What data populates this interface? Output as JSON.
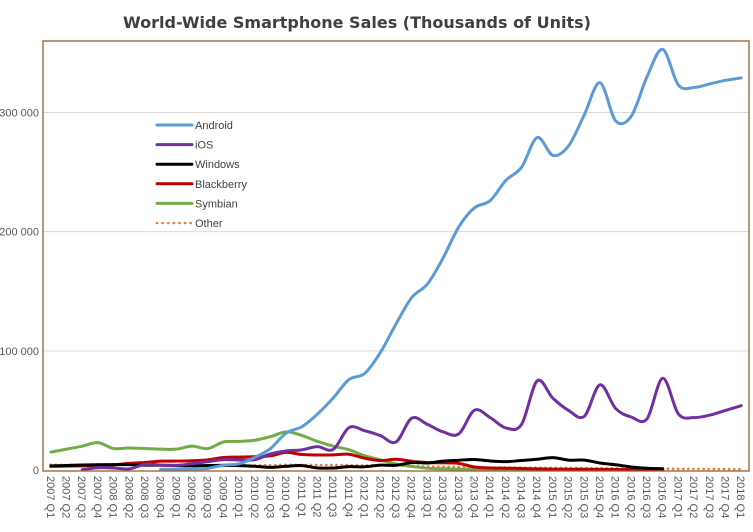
{
  "chart_data": {
    "type": "line",
    "title": "World-Wide Smartphone Sales (Thousands of Units)",
    "xlabel": "",
    "ylabel": "",
    "ylim": [
      0,
      360000
    ],
    "yticks": [
      0,
      100000,
      200000,
      300000
    ],
    "ytick_labels": [
      "0",
      "100 000",
      "200 000",
      "300 000"
    ],
    "grid": "horizontal",
    "legend_position": "upper-left inside",
    "categories": [
      "2007 Q1",
      "2007 Q2",
      "2007 Q3",
      "2007 Q4",
      "2008 Q1",
      "2008 Q2",
      "2008 Q3",
      "2008 Q4",
      "2009 Q1",
      "2009 Q2",
      "2009 Q3",
      "2009 Q4",
      "2010 Q1",
      "2010 Q2",
      "2010 Q3",
      "2010 Q4",
      "2011 Q1",
      "2011 Q2",
      "2011 Q3",
      "2011 Q4",
      "2012 Q1",
      "2012 Q2",
      "2012 Q3",
      "2012 Q4",
      "2013 Q1",
      "2013 Q2",
      "2013 Q3",
      "2013 Q4",
      "2014 Q1",
      "2014 Q2",
      "2014 Q3",
      "2014 Q4",
      "2015 Q1",
      "2015 Q2",
      "2015 Q3",
      "2015 Q4",
      "2016 Q1",
      "2016 Q2",
      "2016 Q3",
      "2016 Q4",
      "2017 Q1",
      "2017 Q2",
      "2017 Q3",
      "2017 Q4",
      "2018 Q1"
    ],
    "series": [
      {
        "name": "Android",
        "color": "#5B9BD5",
        "dash": "solid",
        "values": [
          null,
          null,
          null,
          null,
          null,
          null,
          null,
          600,
          600,
          800,
          1400,
          4000,
          5200,
          10600,
          18000,
          31000,
          36300,
          47000,
          60500,
          75900,
          81000,
          98500,
          122500,
          144700,
          156000,
          177900,
          204000,
          220000,
          226000,
          243000,
          254000,
          279000,
          264000,
          272000,
          298000,
          325000,
          293000,
          297000,
          330000,
          353000,
          323000,
          321000,
          324000,
          327000,
          329000
        ]
      },
      {
        "name": "iOS",
        "color": "#7030A0",
        "dash": "solid",
        "values": [
          null,
          null,
          300,
          1900,
          1700,
          900,
          4700,
          4100,
          3900,
          5300,
          7000,
          8700,
          8400,
          8700,
          13500,
          16000,
          16900,
          19600,
          17300,
          35500,
          33000,
          28900,
          23500,
          43500,
          38300,
          32000,
          30300,
          50200,
          44000,
          35300,
          38200,
          74800,
          60200,
          50000,
          45000,
          71500,
          51600,
          44400,
          43000,
          77000,
          47000,
          44000,
          46000,
          50000,
          54000
        ]
      },
      {
        "name": "Windows",
        "color": "#000000",
        "dash": "solid",
        "values": [
          3500,
          3800,
          4200,
          4400,
          4500,
          4500,
          4100,
          4000,
          3700,
          3600,
          3800,
          3900,
          3700,
          3100,
          2200,
          3100,
          3700,
          1700,
          1700,
          2800,
          2700,
          4100,
          4000,
          6200,
          5900,
          7400,
          8200,
          8800,
          7600,
          7000,
          8000,
          9000,
          10400,
          8300,
          8300,
          5900,
          4400,
          2500,
          1500,
          1100,
          null,
          null,
          null,
          null,
          null
        ]
      },
      {
        "name": "Blackberry",
        "color": "#C00000",
        "dash": "solid",
        "values": [
          3000,
          3200,
          3500,
          4000,
          4300,
          5600,
          6300,
          7400,
          7500,
          7800,
          8500,
          10500,
          10800,
          11200,
          11900,
          14800,
          13000,
          12600,
          12700,
          13200,
          9900,
          7900,
          9000,
          7300,
          6200,
          6000,
          5500,
          2500,
          1700,
          1500,
          1300,
          900,
          700,
          600,
          600,
          500,
          400,
          300,
          200,
          200,
          null,
          null,
          null,
          null,
          null
        ]
      },
      {
        "name": "Symbian",
        "color": "#70AD47",
        "dash": "solid",
        "values": [
          15000,
          17500,
          20000,
          23000,
          18000,
          18500,
          18000,
          17500,
          17500,
          20000,
          18000,
          23500,
          24000,
          25000,
          28000,
          32000,
          29000,
          24000,
          20000,
          17000,
          12000,
          8500,
          5000,
          3000,
          1500,
          1000,
          700,
          600,
          500,
          500,
          500,
          500,
          400,
          400,
          400,
          300,
          300,
          300,
          200,
          200,
          null,
          null,
          null,
          null,
          null
        ]
      },
      {
        "name": "Other",
        "color": "#ED7D31",
        "dash": "dotted",
        "values": [
          4500,
          4200,
          4500,
          4800,
          4600,
          4500,
          4200,
          4000,
          4000,
          3700,
          3800,
          4200,
          4000,
          3800,
          4000,
          4400,
          4300,
          4200,
          4200,
          4000,
          3800,
          4000,
          3700,
          3500,
          3000,
          2700,
          2500,
          2300,
          2100,
          2000,
          2000,
          1900,
          1800,
          1800,
          1600,
          1500,
          1400,
          1300,
          1200,
          1100,
          1000,
          1000,
          900,
          800,
          700
        ]
      }
    ]
  },
  "colors": {
    "frame": "#9C5B2E",
    "grid": "#D9D9D9"
  }
}
